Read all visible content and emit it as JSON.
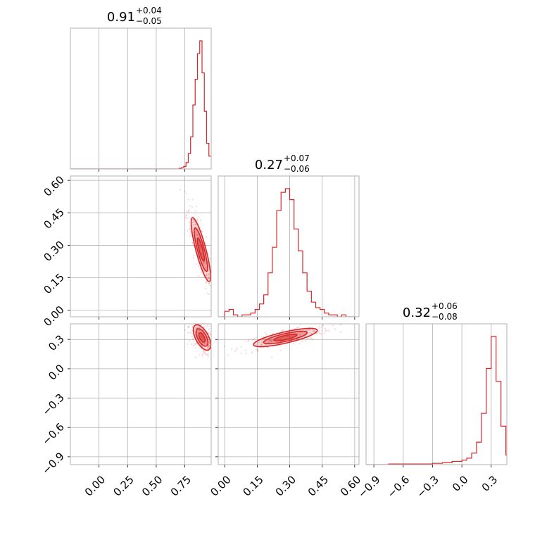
{
  "chart_data": {
    "type": "corner",
    "color": "#d62728",
    "parameters": [
      {
        "range": [
          -0.25,
          0.98
        ],
        "ticks": [
          0.0,
          0.25,
          0.5,
          0.75
        ],
        "tick_labels": [
          "0.00",
          "0.25",
          "0.50",
          "0.75"
        ],
        "title_main": "0.91",
        "title_plus": "+0.04",
        "title_minus": "−0.05"
      },
      {
        "range": [
          -0.03,
          0.62
        ],
        "ticks": [
          0.0,
          0.15,
          0.3,
          0.45,
          0.6
        ],
        "tick_labels": [
          "0.00",
          "0.15",
          "0.30",
          "0.45",
          "0.60"
        ],
        "title_main": "0.27",
        "title_plus": "+0.07",
        "title_minus": "−0.06"
      },
      {
        "range": [
          -0.98,
          0.46
        ],
        "ticks": [
          -0.9,
          -0.6,
          -0.3,
          0.0,
          0.3
        ],
        "tick_labels": [
          "−0.9",
          "−0.6",
          "−0.3",
          "0.0",
          "0.3"
        ],
        "title_main": "0.32",
        "title_plus": "+0.06",
        "title_minus": "−0.08"
      }
    ],
    "hist1d": [
      {
        "bin_left": [
          0.7,
          0.72,
          0.74,
          0.76,
          0.78,
          0.8,
          0.82,
          0.84,
          0.86,
          0.88,
          0.9,
          0.92,
          0.94,
          0.96
        ],
        "counts": [
          1,
          2,
          4,
          10,
          24,
          50,
          100,
          140,
          180,
          200,
          150,
          90,
          40,
          20
        ]
      },
      {
        "bin_left": [
          0.0,
          0.02,
          0.04,
          0.06,
          0.08,
          0.1,
          0.12,
          0.14,
          0.16,
          0.18,
          0.2,
          0.22,
          0.24,
          0.26,
          0.28,
          0.3,
          0.32,
          0.34,
          0.36,
          0.38,
          0.4,
          0.42,
          0.44,
          0.46,
          0.48,
          0.5,
          0.52,
          0.54,
          0.56,
          0.58
        ],
        "counts": [
          3,
          4,
          1,
          0,
          1,
          1,
          2,
          4,
          7,
          12,
          24,
          38,
          58,
          68,
          70,
          64,
          48,
          36,
          24,
          14,
          8,
          5,
          4,
          2,
          1,
          1,
          0,
          1,
          0,
          0
        ]
      },
      {
        "bin_left": [
          -0.9,
          -0.75,
          -0.6,
          -0.45,
          -0.3,
          -0.2,
          -0.1,
          0.0,
          0.05,
          0.1,
          0.15,
          0.2,
          0.25,
          0.3,
          0.35,
          0.4,
          0.45
        ],
        "counts": [
          0,
          1,
          1,
          1,
          2,
          3,
          5,
          7,
          10,
          18,
          35,
          80,
          150,
          200,
          130,
          60,
          15
        ]
      }
    ],
    "scatter_2d": [
      {
        "x_param": 0,
        "y_param": 1,
        "center": [
          0.89,
          0.28
        ],
        "cov": [
          [
            0.0015,
            -0.0022
          ],
          [
            -0.0022,
            0.0045
          ]
        ]
      },
      {
        "x_param": 0,
        "y_param": 2,
        "center": [
          0.9,
          0.32
        ],
        "cov": [
          [
            0.0012,
            -0.0012
          ],
          [
            -0.0012,
            0.0035
          ]
        ]
      },
      {
        "x_param": 1,
        "y_param": 2,
        "center": [
          0.28,
          0.32
        ],
        "cov": [
          [
            0.0045,
            0.0022
          ],
          [
            0.0022,
            0.0018
          ]
        ]
      }
    ]
  }
}
